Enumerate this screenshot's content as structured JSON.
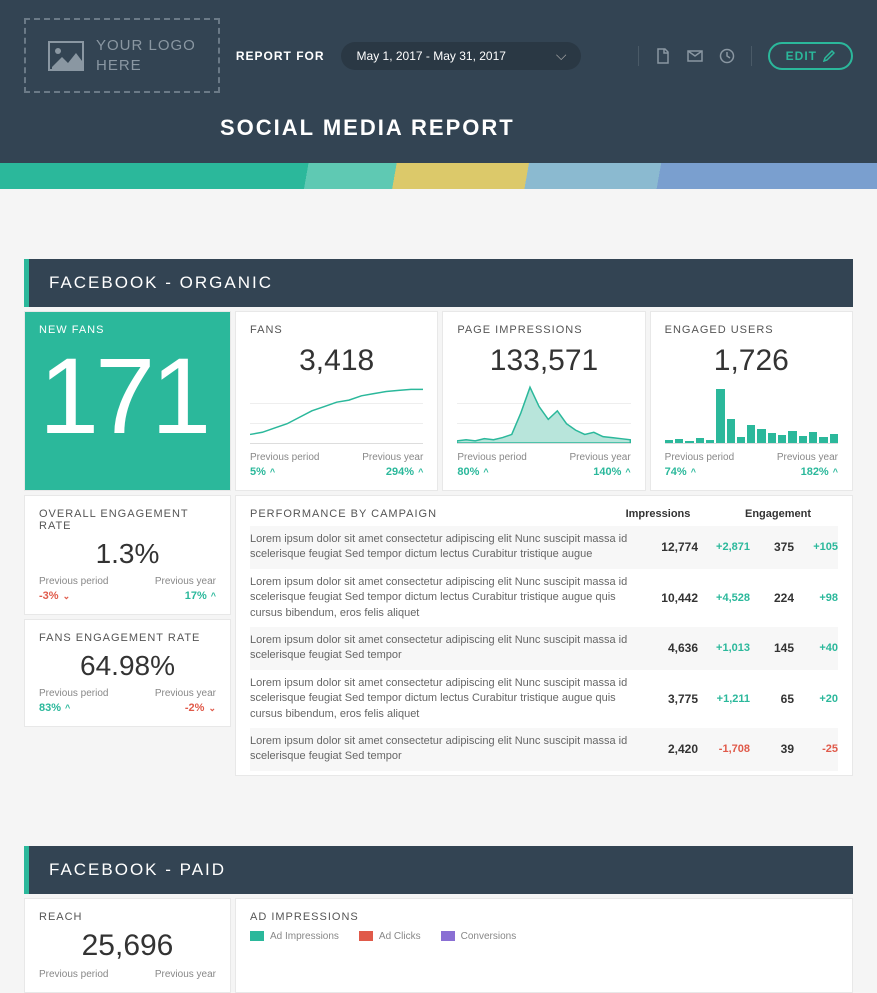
{
  "colors": {
    "accent": "#2bb89b",
    "header_bg": "#334453",
    "negative": "#e05a4a",
    "text_muted": "#888888",
    "border": "#e8e8e8",
    "logo_muted": "#8a97a2",
    "purple": "#8a6fd4"
  },
  "header": {
    "logo_line1": "YOUR LOGO",
    "logo_line2": "HERE",
    "report_for_label": "REPORT FOR",
    "date_range": "May 1, 2017 - May 31, 2017",
    "edit_label": "EDIT",
    "title": "SOCIAL MEDIA REPORT"
  },
  "section1": {
    "title": "FACEBOOK - ORGANIC",
    "hero": {
      "label": "NEW FANS",
      "value": "171"
    },
    "fans": {
      "label": "FANS",
      "value": "3,418",
      "spark": {
        "type": "line",
        "points": [
          8,
          10,
          14,
          18,
          24,
          30,
          34,
          38,
          40,
          44,
          46,
          48,
          49,
          50,
          50
        ],
        "ylim": [
          0,
          55
        ]
      },
      "prev_period_label": "Previous period",
      "prev_period": "5%",
      "prev_period_dir": "up",
      "prev_year_label": "Previous year",
      "prev_year": "294%",
      "prev_year_dir": "up"
    },
    "impressions": {
      "label": "PAGE IMPRESSIONS",
      "value": "133,571",
      "spark": {
        "type": "area",
        "points": [
          2,
          3,
          2,
          4,
          3,
          5,
          8,
          28,
          52,
          34,
          22,
          30,
          18,
          12,
          8,
          10,
          6,
          5,
          4,
          3
        ],
        "ylim": [
          0,
          55
        ]
      },
      "prev_period_label": "Previous period",
      "prev_period": "80%",
      "prev_period_dir": "up",
      "prev_year_label": "Previous year",
      "prev_year": "140%",
      "prev_year_dir": "up"
    },
    "engaged": {
      "label": "ENGAGED USERS",
      "value": "1,726",
      "spark": {
        "type": "bar",
        "values": [
          3,
          4,
          2,
          5,
          3,
          55,
          24,
          6,
          18,
          14,
          10,
          8,
          12,
          7,
          11,
          6,
          9
        ],
        "ylim": [
          0,
          60
        ]
      },
      "prev_period_label": "Previous period",
      "prev_period": "74%",
      "prev_period_dir": "up",
      "prev_year_label": "Previous year",
      "prev_year": "182%",
      "prev_year_dir": "up"
    },
    "overall_rate": {
      "label": "OVERALL ENGAGEMENT RATE",
      "value": "1.3%",
      "prev_period_label": "Previous period",
      "prev_period": "-3%",
      "prev_period_dir": "down",
      "prev_year_label": "Previous year",
      "prev_year": "17%",
      "prev_year_dir": "up"
    },
    "fans_rate": {
      "label": "FANS ENGAGEMENT RATE",
      "value": "64.98%",
      "prev_period_label": "Previous period",
      "prev_period": "83%",
      "prev_period_dir": "up",
      "prev_year_label": "Previous year",
      "prev_year": "-2%",
      "prev_year_dir": "down"
    },
    "performance": {
      "label": "PERFORMANCE BY CAMPAIGN",
      "col1": "Impressions",
      "col2": "Engagement",
      "rows": [
        {
          "text": "Lorem ipsum dolor sit amet consectetur adipiscing elit Nunc suscipit massa id scelerisque feugiat Sed tempor dictum lectus Curabitur tristique augue",
          "impressions": "12,774",
          "imp_delta": "+2,871",
          "imp_dir": "up",
          "engagement": "375",
          "eng_delta": "+105",
          "eng_dir": "up"
        },
        {
          "text": "Lorem ipsum dolor sit amet consectetur adipiscing elit Nunc suscipit massa id scelerisque feugiat Sed tempor dictum lectus Curabitur tristique augue quis cursus bibendum, eros felis aliquet",
          "impressions": "10,442",
          "imp_delta": "+4,528",
          "imp_dir": "up",
          "engagement": "224",
          "eng_delta": "+98",
          "eng_dir": "up"
        },
        {
          "text": "Lorem ipsum dolor sit amet consectetur adipiscing elit Nunc suscipit massa id scelerisque feugiat Sed tempor",
          "impressions": "4,636",
          "imp_delta": "+1,013",
          "imp_dir": "up",
          "engagement": "145",
          "eng_delta": "+40",
          "eng_dir": "up"
        },
        {
          "text": "Lorem ipsum dolor sit amet consectetur adipiscing elit Nunc suscipit massa id scelerisque feugiat Sed tempor dictum lectus Curabitur tristique augue quis cursus bibendum, eros felis aliquet",
          "impressions": "3,775",
          "imp_delta": "+1,211",
          "imp_dir": "up",
          "engagement": "65",
          "eng_delta": "+20",
          "eng_dir": "up"
        },
        {
          "text": "Lorem ipsum dolor sit amet consectetur adipiscing elit Nunc suscipit massa id scelerisque feugiat Sed tempor",
          "impressions": "2,420",
          "imp_delta": "-1,708",
          "imp_dir": "down",
          "engagement": "39",
          "eng_delta": "-25",
          "eng_dir": "down"
        }
      ]
    }
  },
  "section2": {
    "title": "FACEBOOK - PAID",
    "reach": {
      "label": "REACH",
      "value": "25,696",
      "prev_period_label": "Previous period",
      "prev_year_label": "Previous year"
    },
    "ad_impressions": {
      "label": "AD IMPRESSIONS",
      "legend": [
        {
          "label": "Ad Impressions",
          "color": "#2bb89b"
        },
        {
          "label": "Ad Clicks",
          "color": "#e05a4a"
        },
        {
          "label": "Conversions",
          "color": "#8a6fd4"
        }
      ]
    }
  }
}
